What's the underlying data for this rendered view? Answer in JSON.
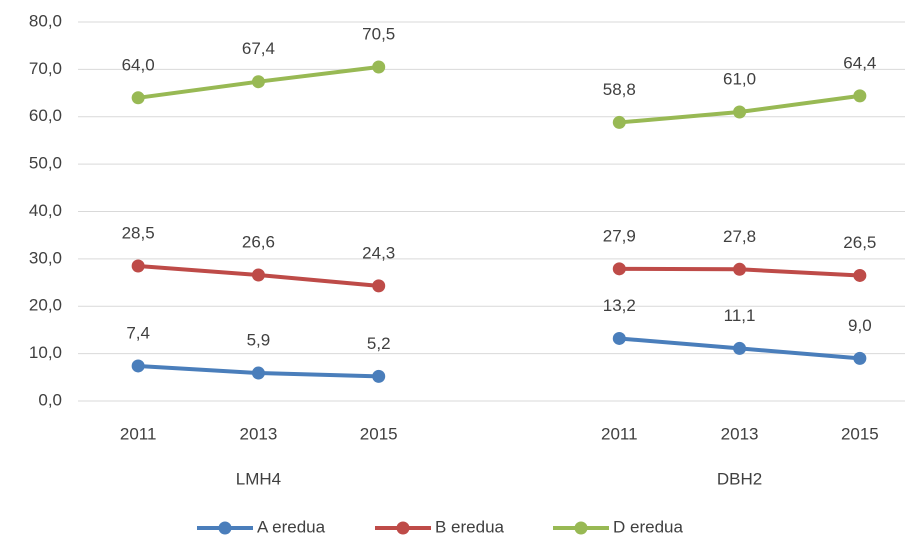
{
  "chart_data": {
    "type": "line",
    "categories": [
      "2011",
      "2013",
      "2015",
      null,
      "2011",
      "2013",
      "2015"
    ],
    "groups": [
      "LMH4",
      "DBH2"
    ],
    "series": [
      {
        "name": "A eredua",
        "color": "#4a7ebb",
        "values": [
          7.4,
          5.9,
          5.2,
          null,
          13.2,
          11.1,
          9.0
        ],
        "value_labels": [
          "7,4",
          "5,9",
          "5,2",
          null,
          "13,2",
          "11,1",
          "9,0"
        ]
      },
      {
        "name": "B eredua",
        "color": "#be4b48",
        "values": [
          28.5,
          26.6,
          24.3,
          null,
          27.9,
          27.8,
          26.5
        ],
        "value_labels": [
          "28,5",
          "26,6",
          "24,3",
          null,
          "27,9",
          "27,8",
          "26,5"
        ]
      },
      {
        "name": "D eredua",
        "color": "#98b954",
        "values": [
          64.0,
          67.4,
          70.5,
          null,
          58.8,
          61.0,
          64.4
        ],
        "value_labels": [
          "64,0",
          "67,4",
          "70,5",
          null,
          "58,8",
          "61,0",
          "64,4"
        ]
      }
    ],
    "ylim": [
      0,
      80
    ],
    "yticks": [
      {
        "value": 0,
        "label": "0,0"
      },
      {
        "value": 10,
        "label": "10,0"
      },
      {
        "value": 20,
        "label": "20,0"
      },
      {
        "value": 30,
        "label": "30,0"
      },
      {
        "value": 40,
        "label": "40,0"
      },
      {
        "value": 50,
        "label": "50,0"
      },
      {
        "value": 60,
        "label": "60,0"
      },
      {
        "value": 70,
        "label": "70,0"
      },
      {
        "value": 80,
        "label": "80,0"
      }
    ],
    "grid": true,
    "legend": "bottom"
  }
}
